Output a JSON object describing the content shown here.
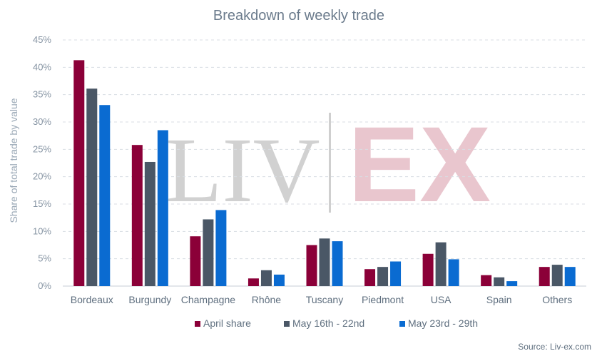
{
  "chart_data": {
    "type": "bar",
    "title": "Breakdown of weekly trade",
    "xlabel": "",
    "ylabel": "Share of total trade by value",
    "ylim": [
      0,
      45
    ],
    "y_ticks": [
      "0%",
      "5%",
      "10%",
      "15%",
      "20%",
      "25%",
      "30%",
      "35%",
      "40%",
      "45%"
    ],
    "categories": [
      "Bordeaux",
      "Burgundy",
      "Champagne",
      "Rhône",
      "Tuscany",
      "Piedmont",
      "USA",
      "Spain",
      "Others"
    ],
    "series": [
      {
        "name": "April share",
        "color": "#8b0038",
        "values": [
          41.3,
          25.8,
          9.1,
          1.4,
          7.5,
          3.1,
          5.9,
          2.0,
          3.5
        ]
      },
      {
        "name": "May 16th - 22nd",
        "color": "#4a5766",
        "values": [
          36.1,
          22.7,
          12.2,
          2.9,
          8.7,
          3.5,
          8.0,
          1.6,
          3.9
        ]
      },
      {
        "name": "May 23rd - 29th",
        "color": "#0a6bd1",
        "values": [
          33.1,
          28.5,
          13.9,
          2.1,
          8.2,
          4.5,
          4.9,
          0.9,
          3.5
        ]
      }
    ],
    "grid": true,
    "legend_position": "bottom-center"
  },
  "watermark": {
    "left": "LIV",
    "right": "EX"
  },
  "footer": {
    "source": "Source: Liv-ex.com"
  }
}
